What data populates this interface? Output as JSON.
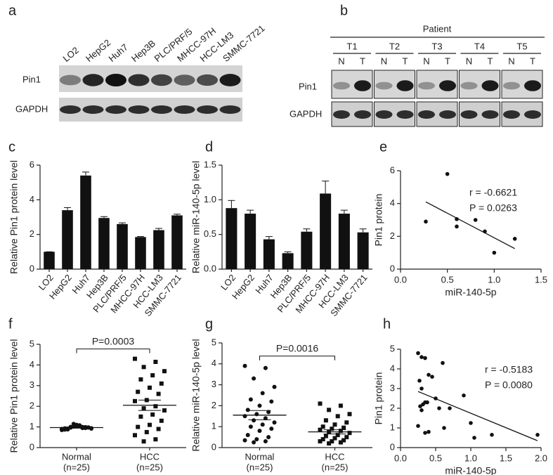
{
  "panel_labels": [
    "a",
    "b",
    "c",
    "d",
    "e",
    "f",
    "g",
    "h"
  ],
  "blots": {
    "a": {
      "lanes": [
        "LO2",
        "HepG2",
        "Huh7",
        "Hep3B",
        "PLC/PRF/5",
        "MHCC-97H",
        "HCC-LM3",
        "SMMC-7721"
      ],
      "rows": [
        "Pin1",
        "GAPDH"
      ]
    },
    "b": {
      "header": "Patient",
      "groups": [
        "T1",
        "T2",
        "T3",
        "T4",
        "T5"
      ],
      "lanes": [
        "N",
        "T"
      ],
      "rows": [
        "Pin1",
        "GAPDH"
      ]
    }
  },
  "chart_data": [
    {
      "type": "bar",
      "ylabel": "Relative Pin1 protein level",
      "color": "#111111",
      "categories": [
        "LO2",
        "HepG2",
        "Huh7",
        "Hep3B",
        "PLC/PRF/5",
        "MHCC-97H",
        "HCC-LM3",
        "SMMC-7721"
      ],
      "values": [
        1,
        3.4,
        5.4,
        2.95,
        2.6,
        1.85,
        2.25,
        3.1
      ],
      "errors": [
        0,
        0.15,
        0.2,
        0.08,
        0.07,
        0.03,
        0.1,
        0.07
      ],
      "ylim": [
        0,
        6
      ],
      "yticks": [
        0,
        2,
        4,
        6
      ]
    },
    {
      "type": "bar",
      "ylabel": "Relative miR-140-5p level",
      "color": "#111111",
      "categories": [
        "LO2",
        "HepG2",
        "Huh7",
        "Hep3B",
        "PLC/PRF/5",
        "MHCC-97H",
        "HCC-LM3",
        "SMMC-7721"
      ],
      "values": [
        0.88,
        0.8,
        0.43,
        0.23,
        0.54,
        1.09,
        0.8,
        0.53
      ],
      "errors": [
        0.11,
        0.05,
        0.04,
        0.02,
        0.04,
        0.18,
        0.05,
        0.05
      ],
      "ylim": [
        0,
        1.5
      ],
      "yticks": [
        {
          "value": 0,
          "label": "0.0"
        },
        0.5,
        {
          "value": 1,
          "label": "1.0"
        },
        1.5
      ]
    },
    {
      "type": "scatter",
      "xlabel": "miR-140-5p",
      "ylabel": "Pin1 protein",
      "color": "#111111",
      "x": [
        0.27,
        0.5,
        0.6,
        0.6,
        0.8,
        0.9,
        1.0,
        1.22
      ],
      "y": [
        2.9,
        5.8,
        3.05,
        2.6,
        3.0,
        2.3,
        1.0,
        1.85
      ],
      "fit_line": {
        "x": [
          0.27,
          1.22
        ],
        "y": [
          4.1,
          1.25
        ]
      },
      "annotations": [
        "r = -0.6621",
        "P = 0.0263"
      ],
      "xlim": [
        0,
        1.5
      ],
      "xticks": [
        {
          "value": 0,
          "label": "0.0"
        },
        0.5,
        {
          "value": 1,
          "label": "1.0"
        },
        1.5
      ],
      "ylim": [
        0,
        6
      ],
      "yticks": [
        0,
        2,
        4,
        6
      ]
    },
    {
      "type": "dot",
      "ylabel": "Relative Pin1 protein level",
      "annotation": "P=0.0003",
      "groups": [
        {
          "label": "Normal",
          "note": "(n=25)",
          "marker": "circle",
          "mean": 0.97,
          "sem": 0.03,
          "values": [
            0.9,
            0.95,
            1.0,
            0.92,
            1.05,
            0.88,
            0.97,
            1.1,
            0.93,
            0.99,
            1.02,
            0.85,
            0.96,
            1.0,
            0.94,
            1.08,
            0.91,
            0.98,
            1.03,
            0.87,
            0.95,
            1.15,
            0.9,
            1.0,
            0.97
          ]
        },
        {
          "label": "HCC",
          "note": "(n=25)",
          "marker": "square",
          "mean": 2.05,
          "sem": 0.25,
          "values": [
            4.3,
            4.15,
            3.9,
            3.7,
            3.5,
            3.3,
            3.1,
            2.9,
            2.7,
            2.6,
            2.3,
            2.25,
            2.0,
            1.9,
            1.8,
            1.6,
            1.5,
            1.3,
            1.1,
            1.0,
            0.9,
            0.75,
            0.6,
            0.4,
            0.3
          ]
        }
      ],
      "ylim": [
        0,
        5
      ],
      "yticks": [
        0,
        1,
        2,
        3,
        4,
        5
      ]
    },
    {
      "type": "dot",
      "ylabel": "Relative miR-140-5p level",
      "annotation": "P=0.0016",
      "groups": [
        {
          "label": "Normal",
          "note": "(n=25)",
          "marker": "circle",
          "mean": 1.55,
          "sem": 0.22,
          "values": [
            3.9,
            3.8,
            3.3,
            2.9,
            2.6,
            2.3,
            2.2,
            2.0,
            1.8,
            1.7,
            1.6,
            1.5,
            1.4,
            1.3,
            1.2,
            1.1,
            1.0,
            0.9,
            0.8,
            0.6,
            0.5,
            0.4,
            0.35,
            0.3,
            0.25
          ]
        },
        {
          "label": "HCC",
          "note": "(n=25)",
          "marker": "square",
          "mean": 0.75,
          "sem": 0.1,
          "values": [
            2.1,
            2.0,
            1.8,
            1.6,
            1.5,
            1.3,
            1.2,
            1.1,
            1.0,
            0.95,
            0.9,
            0.85,
            0.8,
            0.75,
            0.7,
            0.6,
            0.55,
            0.5,
            0.45,
            0.4,
            0.35,
            0.3,
            0.3,
            0.25,
            0.2
          ]
        }
      ],
      "ylim": [
        0,
        5
      ],
      "yticks": [
        0,
        1,
        2,
        3,
        4,
        5
      ]
    },
    {
      "type": "scatter",
      "xlabel": "miR-140-5p",
      "ylabel": "Pin1 protein",
      "color": "#111111",
      "x": [
        0.25,
        0.3,
        0.35,
        0.27,
        0.4,
        0.45,
        0.3,
        0.35,
        0.32,
        0.28,
        0.3,
        0.38,
        0.5,
        0.55,
        0.6,
        0.62,
        0.7,
        0.25,
        0.35,
        0.4,
        0.9,
        1.0,
        1.05,
        1.3,
        1.95
      ],
      "y": [
        4.8,
        4.6,
        4.55,
        3.4,
        3.7,
        3.6,
        3.0,
        2.3,
        2.2,
        2.1,
        1.9,
        2.3,
        2.5,
        2.0,
        4.3,
        1.0,
        2.0,
        1.1,
        0.75,
        0.8,
        2.65,
        1.25,
        0.5,
        0.65,
        0.65
      ],
      "fit_line": {
        "x": [
          0.25,
          1.95
        ],
        "y": [
          2.85,
          0.35
        ]
      },
      "annotations": [
        "r = -0.5183",
        "P = 0.0080"
      ],
      "xlim": [
        0,
        2
      ],
      "xticks": [
        {
          "value": 0,
          "label": "0.0"
        },
        0.5,
        {
          "value": 1,
          "label": "1.0"
        },
        1.5,
        {
          "value": 2,
          "label": "2.0"
        }
      ],
      "ylim": [
        0,
        5
      ],
      "yticks": [
        0,
        1,
        2,
        3,
        4,
        5
      ]
    }
  ]
}
